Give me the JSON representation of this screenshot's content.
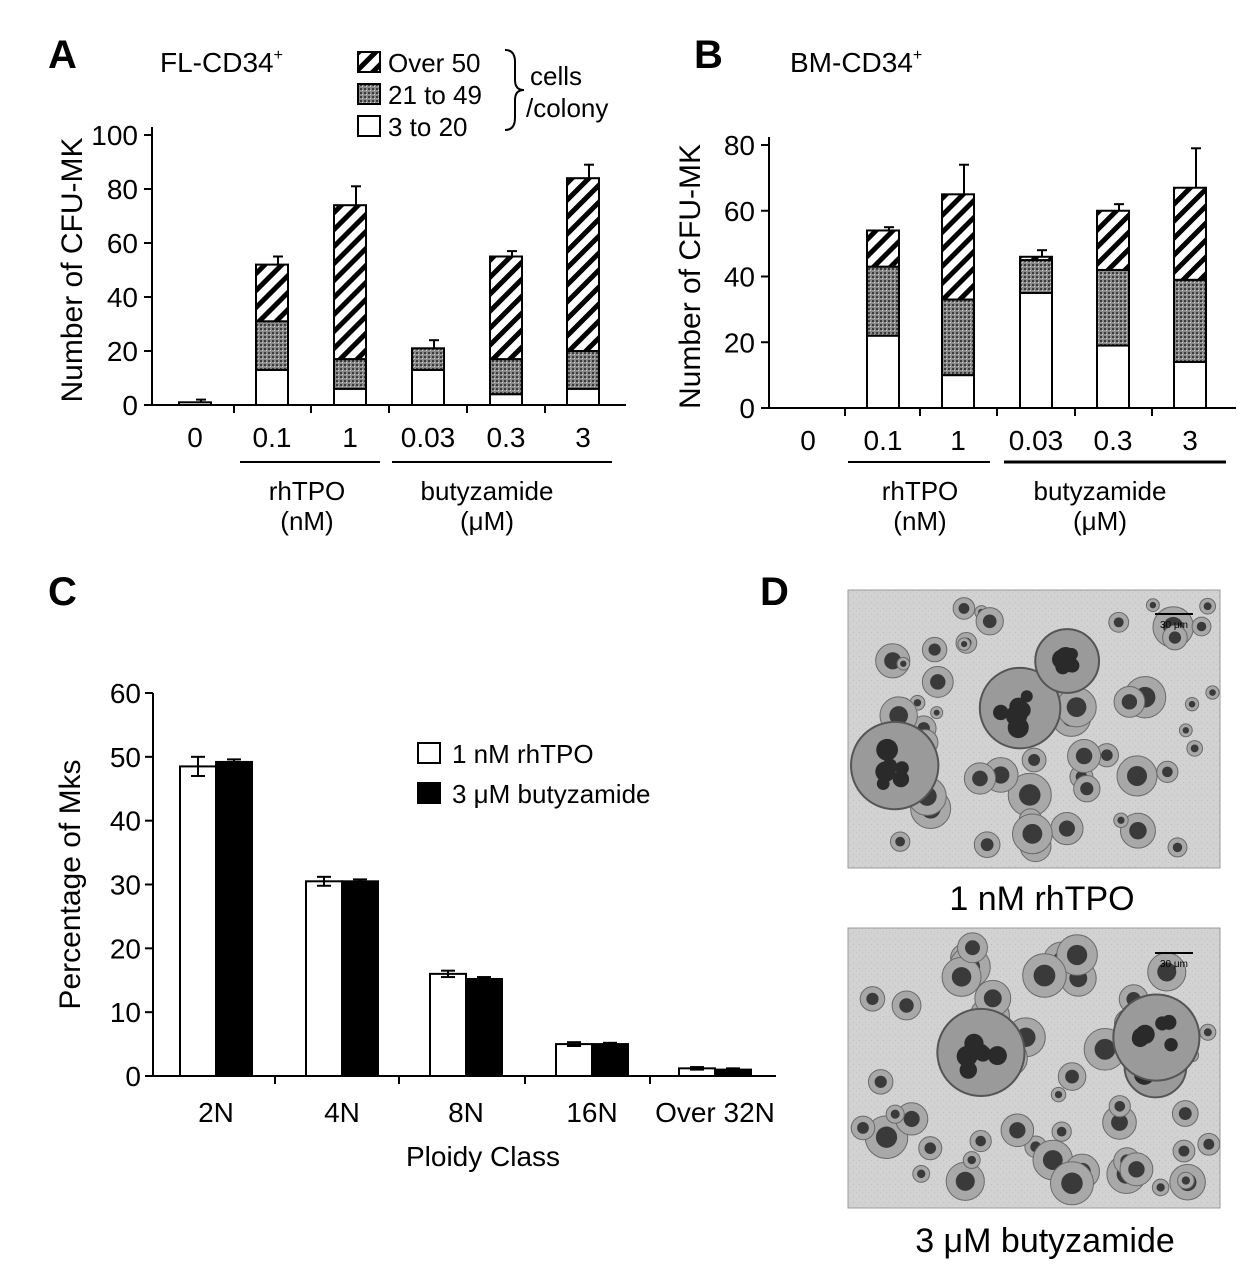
{
  "colors": {
    "panel_letter": "#d6006f",
    "bar_black": "#000000",
    "bar_white": "#ffffff",
    "stipple": "#707070",
    "micro_bg": "#cfcfcf"
  },
  "panel_A": {
    "letter": "A",
    "title": "FL-CD34",
    "title_sup": "+"
  },
  "panel_B": {
    "letter": "B",
    "title": "BM-CD34",
    "title_sup": "+"
  },
  "panel_C": {
    "letter": "C"
  },
  "panel_D": {
    "letter": "D",
    "image1_caption": "1 nM rhTPO",
    "image2_caption": "3 μM butyzamide",
    "image1_scale": "30 μm",
    "image2_scale": "30 μm"
  },
  "legend_AB": {
    "items": [
      "Over 50",
      "21 to 49",
      "3 to 20"
    ],
    "bracket_label_1": "cells",
    "bracket_label_2": "/colony"
  },
  "group_labels": {
    "rhtpo": "rhTPO",
    "rhtpo_unit": "(nM)",
    "butyzamide": "butyzamide",
    "butyzamide_unit": "(μM)"
  },
  "chart_data": [
    {
      "id": "A",
      "type": "bar",
      "stacked": true,
      "title": "FL-CD34+",
      "ylabel": "Number of CFU-MK",
      "ylim": [
        0,
        100
      ],
      "yticks": [
        0,
        20,
        40,
        60,
        80,
        100
      ],
      "categories": [
        "0",
        "0.1",
        "1",
        "0.03",
        "0.3",
        "3"
      ],
      "series": [
        {
          "name": "3 to 20",
          "values": [
            1,
            13,
            6,
            13,
            4,
            6
          ],
          "errors": [
            0,
            3,
            1,
            0,
            3,
            0
          ]
        },
        {
          "name": "21 to 49",
          "values": [
            0,
            18,
            11,
            8,
            13,
            14
          ],
          "errors": [
            0,
            0,
            0,
            0,
            0,
            0
          ]
        },
        {
          "name": "Over 50",
          "values": [
            0,
            21,
            57,
            0,
            38,
            64
          ],
          "errors": [
            1,
            3,
            7,
            3,
            2,
            5
          ]
        }
      ]
    },
    {
      "id": "B",
      "type": "bar",
      "stacked": true,
      "title": "BM-CD34+",
      "ylabel": "Number of CFU-MK",
      "ylim": [
        0,
        80
      ],
      "yticks": [
        0,
        20,
        40,
        60,
        80
      ],
      "categories": [
        "0",
        "0.1",
        "1",
        "0.03",
        "0.3",
        "3"
      ],
      "series": [
        {
          "name": "3 to 20",
          "values": [
            0,
            22,
            10,
            35,
            19,
            14
          ],
          "errors": [
            0,
            0,
            4,
            0,
            1,
            4
          ]
        },
        {
          "name": "21 to 49",
          "values": [
            0,
            21,
            23,
            10,
            23,
            25
          ],
          "errors": [
            0,
            2,
            3,
            0,
            3,
            0
          ]
        },
        {
          "name": "Over 50",
          "values": [
            0,
            11,
            32,
            1,
            18,
            28
          ],
          "errors": [
            0,
            1,
            9,
            2,
            2,
            12
          ]
        }
      ]
    },
    {
      "id": "C",
      "type": "bar",
      "xlabel": "Ploidy Class",
      "ylabel": "Percentage of Mks",
      "ylim": [
        0,
        60
      ],
      "yticks": [
        0,
        10,
        20,
        30,
        40,
        50,
        60
      ],
      "categories": [
        "2N",
        "4N",
        "8N",
        "16N",
        "Over 32N"
      ],
      "series": [
        {
          "name": "1 nM rhTPO",
          "values": [
            48.5,
            30.5,
            16,
            5,
            1.2
          ],
          "errors": [
            1.5,
            0.7,
            0.5,
            0.3,
            0.2
          ]
        },
        {
          "name": "3 μM butyzamide",
          "values": [
            49.2,
            30.5,
            15.2,
            5,
            1
          ],
          "errors": [
            0.4,
            0.3,
            0.3,
            0.2,
            0.2
          ]
        }
      ]
    }
  ]
}
